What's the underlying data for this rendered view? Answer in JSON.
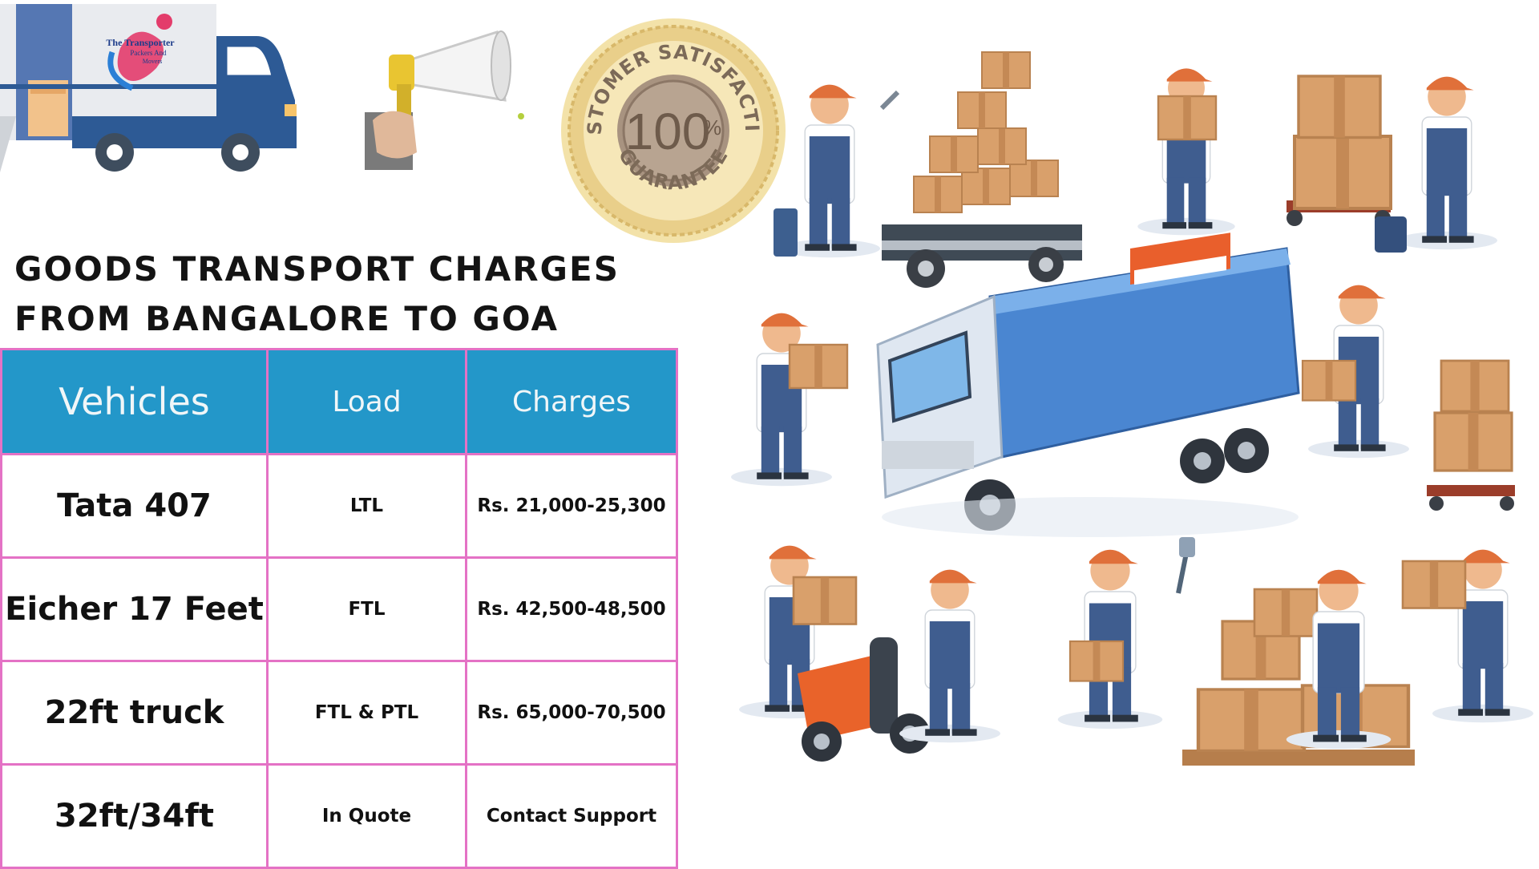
{
  "logo": {
    "brand_line1": "The Transporter",
    "brand_line2": "Packers And",
    "brand_line3": "Movers"
  },
  "seal": {
    "top_text": "CUSTOMER SATISFACTION",
    "number": "100",
    "percent": "%",
    "bottom_text": "GUARANTEE"
  },
  "heading": {
    "line1": "GOODS TRANSPORT CHARGES",
    "line2": "FROM BANGALORE TO GOA"
  },
  "table": {
    "headers": [
      "Vehicles",
      "Load",
      "Charges"
    ],
    "rows": [
      {
        "vehicle": "Tata 407",
        "load": "LTL",
        "charges": "Rs. 21,000-25,300"
      },
      {
        "vehicle": "Eicher 17 Feet",
        "load": "FTL",
        "charges": "Rs. 42,500-48,500"
      },
      {
        "vehicle": "22ft truck",
        "load": "FTL & PTL",
        "charges": "Rs. 65,000-70,500"
      },
      {
        "vehicle": "32ft/34ft",
        "load": "In Quote",
        "charges": "Contact Support"
      }
    ]
  },
  "colors": {
    "header_bg": "#2397c9",
    "table_border": "#e472c5",
    "truck_blue": "#2f5f9e",
    "box_tan": "#d9a06b",
    "cap_orange": "#e0703a",
    "gold": "#d8b86a"
  },
  "icons": [
    "logo-truck-icon",
    "megaphone-icon",
    "satisfaction-seal-icon",
    "movers-illustration"
  ]
}
